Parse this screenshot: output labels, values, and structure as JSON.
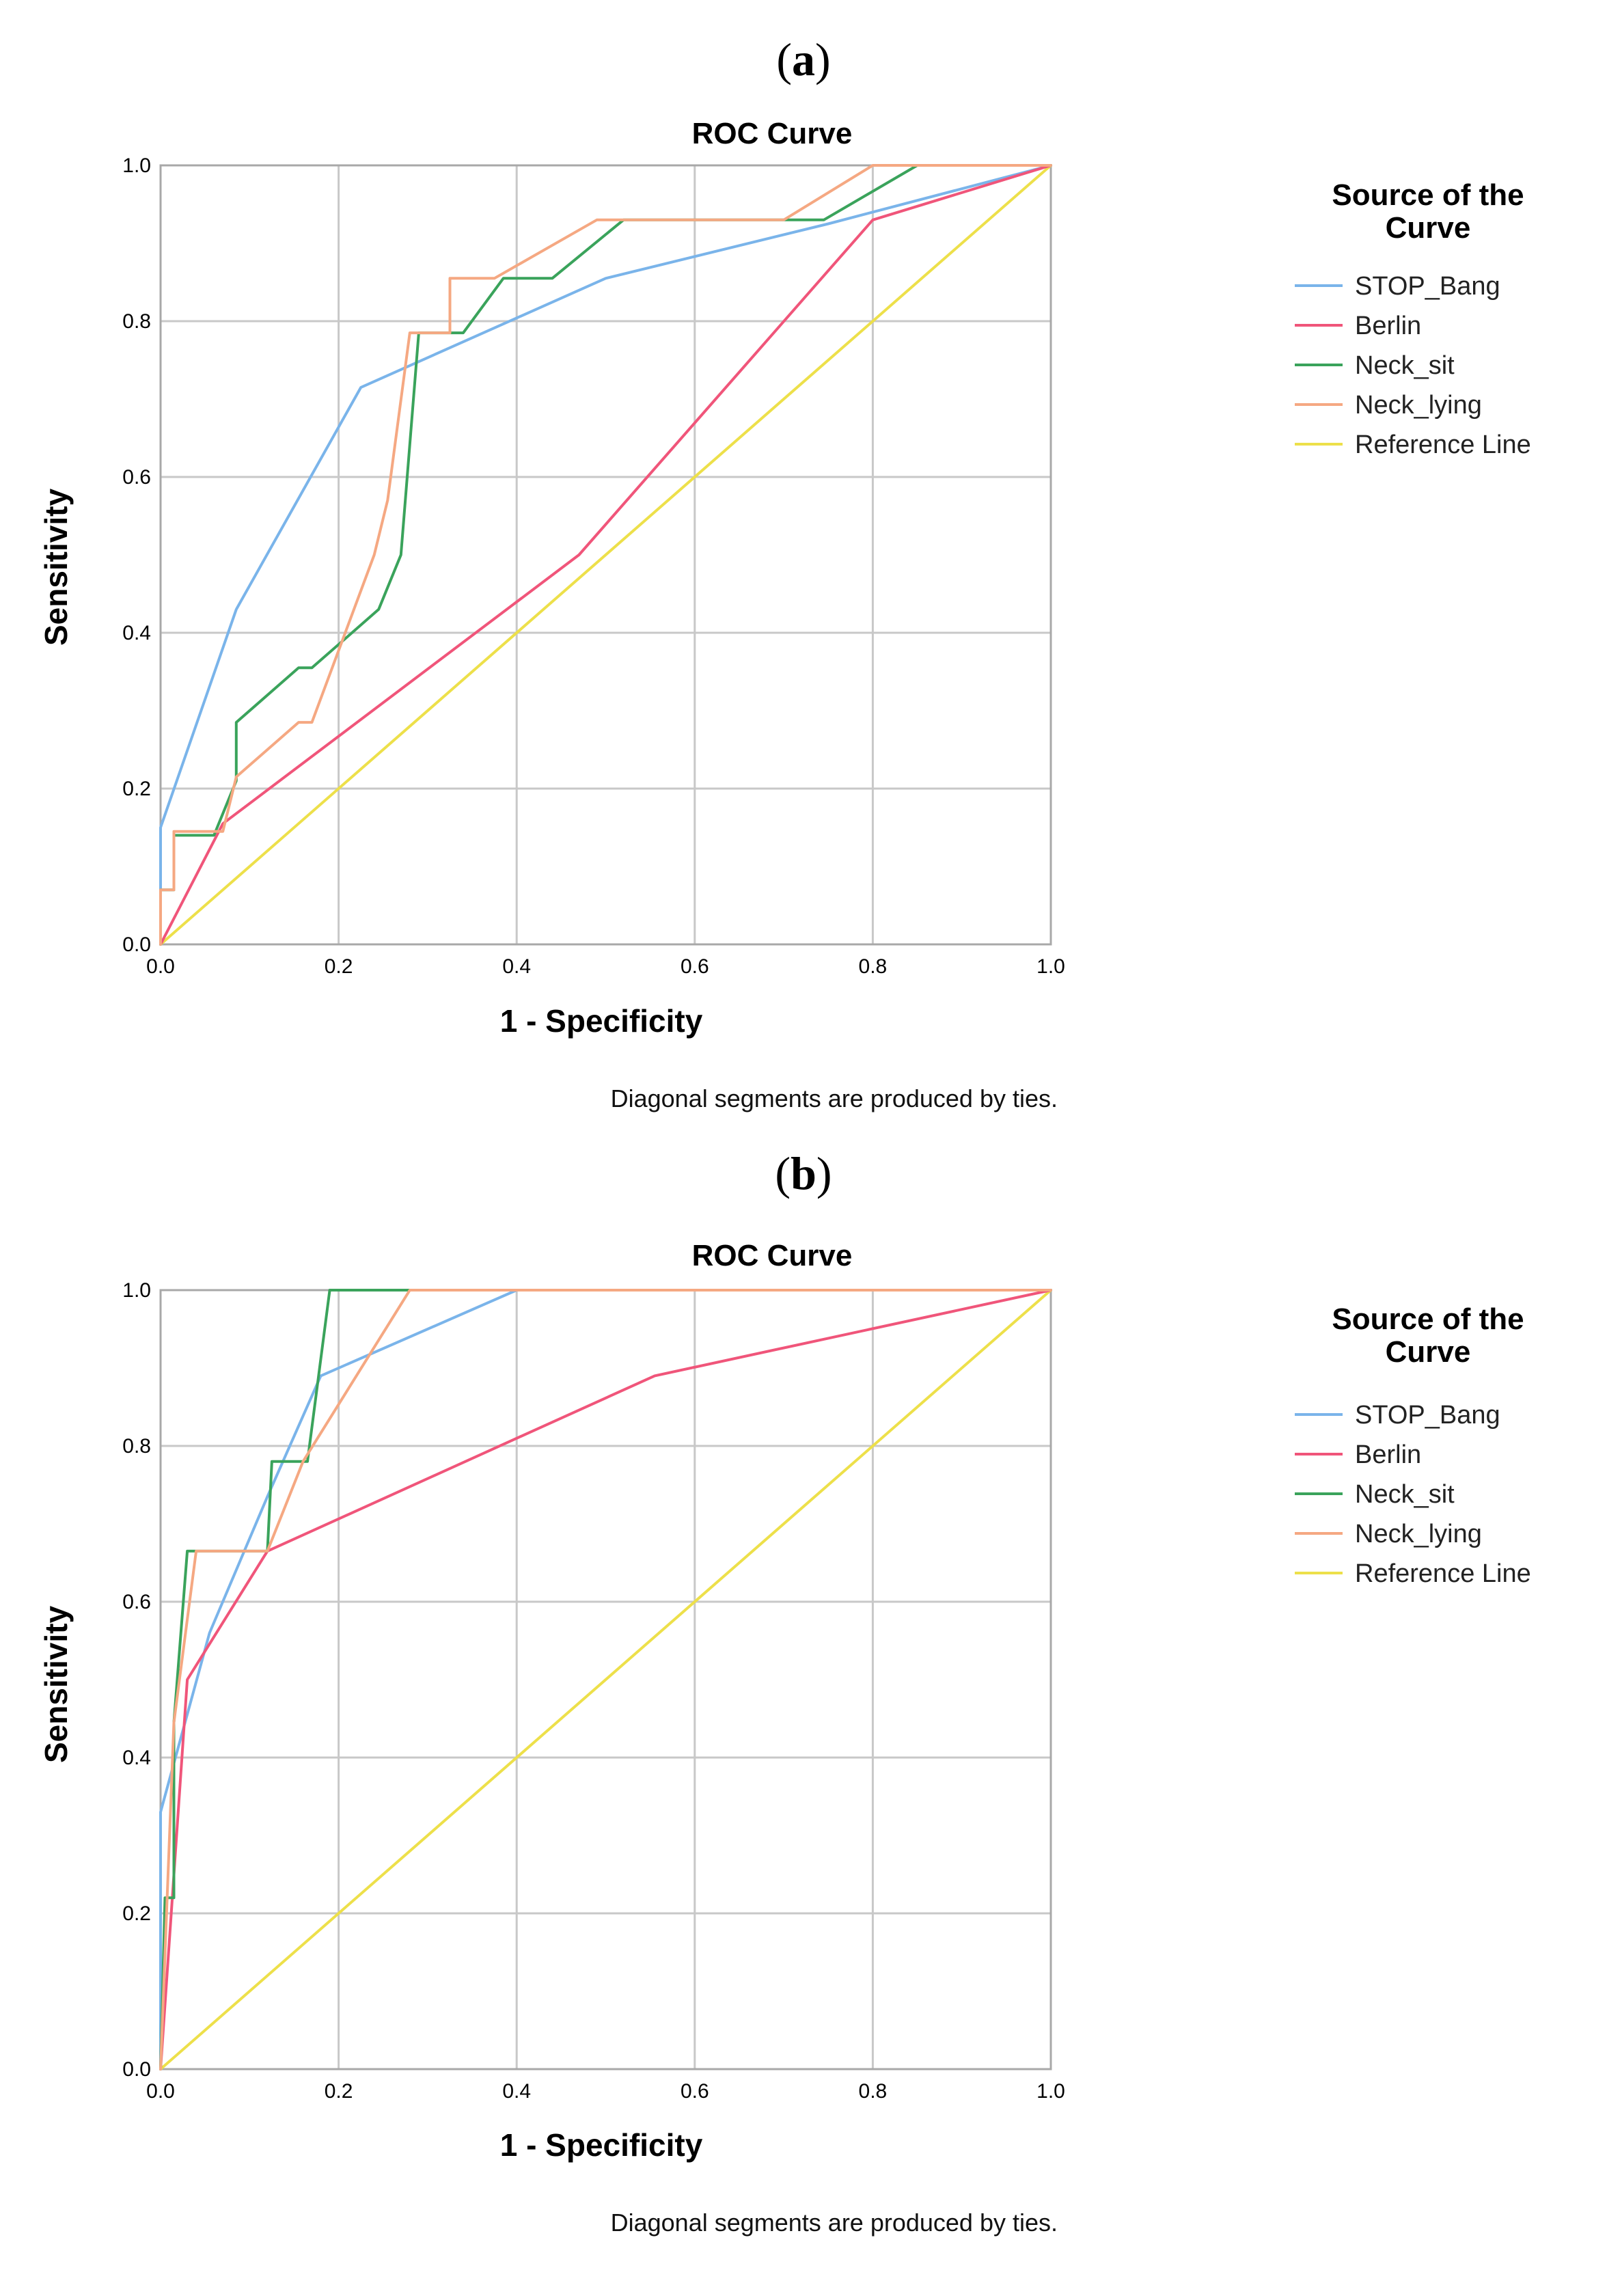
{
  "chart_data": [
    {
      "type": "line",
      "panel_label": "a",
      "title": "ROC Curve",
      "xlabel": "1 - Specificity",
      "ylabel": "Sensitivity",
      "xlim": [
        0,
        1
      ],
      "ylim": [
        0,
        1
      ],
      "xticks": [
        "0.0",
        "0.2",
        "0.4",
        "0.6",
        "0.8",
        "1.0"
      ],
      "yticks": [
        "0.0",
        "0.2",
        "0.4",
        "0.6",
        "0.8",
        "1.0"
      ],
      "grid": true,
      "legend_title": "Source of the Curve",
      "legend_position": "right",
      "footnote": "Diagonal segments are produced by ties.",
      "series": [
        {
          "name": "STOP_Bang",
          "color": "#7ab4ea",
          "x": [
            0,
            0,
            0.085,
            0.225,
            0.5,
            0.75,
            1
          ],
          "y": [
            0,
            0.15,
            0.43,
            0.715,
            0.855,
            0.925,
            1
          ]
        },
        {
          "name": "Berlin",
          "color": "#f0557a",
          "x": [
            0,
            0.07,
            0.47,
            0.8,
            1
          ],
          "y": [
            0,
            0.155,
            0.5,
            0.93,
            1
          ]
        },
        {
          "name": "Neck_sit",
          "color": "#3aa35b",
          "x": [
            0,
            0,
            0.015,
            0.015,
            0.06,
            0.085,
            0.085,
            0.155,
            0.17,
            0.245,
            0.27,
            0.29,
            0.3,
            0.34,
            0.385,
            0.44,
            0.52,
            0.745,
            0.85,
            1
          ],
          "y": [
            0,
            0.07,
            0.07,
            0.14,
            0.14,
            0.21,
            0.285,
            0.355,
            0.355,
            0.43,
            0.5,
            0.785,
            0.785,
            0.785,
            0.855,
            0.855,
            0.93,
            0.93,
            1,
            1
          ]
        },
        {
          "name": "Neck_lying",
          "color": "#f5a882",
          "x": [
            0,
            0,
            0.015,
            0.015,
            0.07,
            0.085,
            0.155,
            0.17,
            0.24,
            0.255,
            0.28,
            0.32,
            0.325,
            0.325,
            0.375,
            0.49,
            0.7,
            0.8,
            1
          ],
          "y": [
            0,
            0.07,
            0.07,
            0.145,
            0.145,
            0.215,
            0.285,
            0.285,
            0.5,
            0.57,
            0.785,
            0.785,
            0.785,
            0.855,
            0.855,
            0.93,
            0.93,
            1,
            1
          ]
        },
        {
          "name": "Reference Line",
          "color": "#ede04a",
          "x": [
            0,
            1
          ],
          "y": [
            0,
            1
          ]
        }
      ]
    },
    {
      "type": "line",
      "panel_label": "b",
      "title": "ROC Curve",
      "xlabel": "1 - Specificity",
      "ylabel": "Sensitivity",
      "xlim": [
        0,
        1
      ],
      "ylim": [
        0,
        1
      ],
      "xticks": [
        "0.0",
        "0.2",
        "0.4",
        "0.6",
        "0.8",
        "1.0"
      ],
      "yticks": [
        "0.0",
        "0.2",
        "0.4",
        "0.6",
        "0.8",
        "1.0"
      ],
      "grid": true,
      "legend_title": "Source of the Curve",
      "legend_position": "right",
      "footnote": "Diagonal segments are produced by ties.",
      "series": [
        {
          "name": "STOP_Bang",
          "color": "#7ab4ea",
          "x": [
            0,
            0,
            0.055,
            0.12,
            0.18,
            0.4,
            1
          ],
          "y": [
            0,
            0.33,
            0.56,
            0.735,
            0.89,
            1,
            1
          ]
        },
        {
          "name": "Berlin",
          "color": "#f0557a",
          "x": [
            0,
            0.03,
            0.12,
            0.555,
            1
          ],
          "y": [
            0,
            0.5,
            0.665,
            0.89,
            1
          ]
        },
        {
          "name": "Neck_sit",
          "color": "#3aa35b",
          "x": [
            0,
            0.005,
            0.005,
            0.015,
            0.015,
            0.03,
            0.12,
            0.125,
            0.165,
            0.19,
            0.195,
            1
          ],
          "y": [
            0,
            0.22,
            0.22,
            0.22,
            0.445,
            0.665,
            0.665,
            0.78,
            0.78,
            1,
            1,
            1
          ]
        },
        {
          "name": "Neck_lying",
          "color": "#f5a882",
          "x": [
            0,
            0.015,
            0.04,
            0.12,
            0.16,
            0.28,
            1
          ],
          "y": [
            0,
            0.445,
            0.665,
            0.665,
            0.78,
            1,
            1
          ]
        },
        {
          "name": "Reference Line",
          "color": "#ede04a",
          "x": [
            0,
            1
          ],
          "y": [
            0,
            1
          ]
        }
      ]
    }
  ]
}
